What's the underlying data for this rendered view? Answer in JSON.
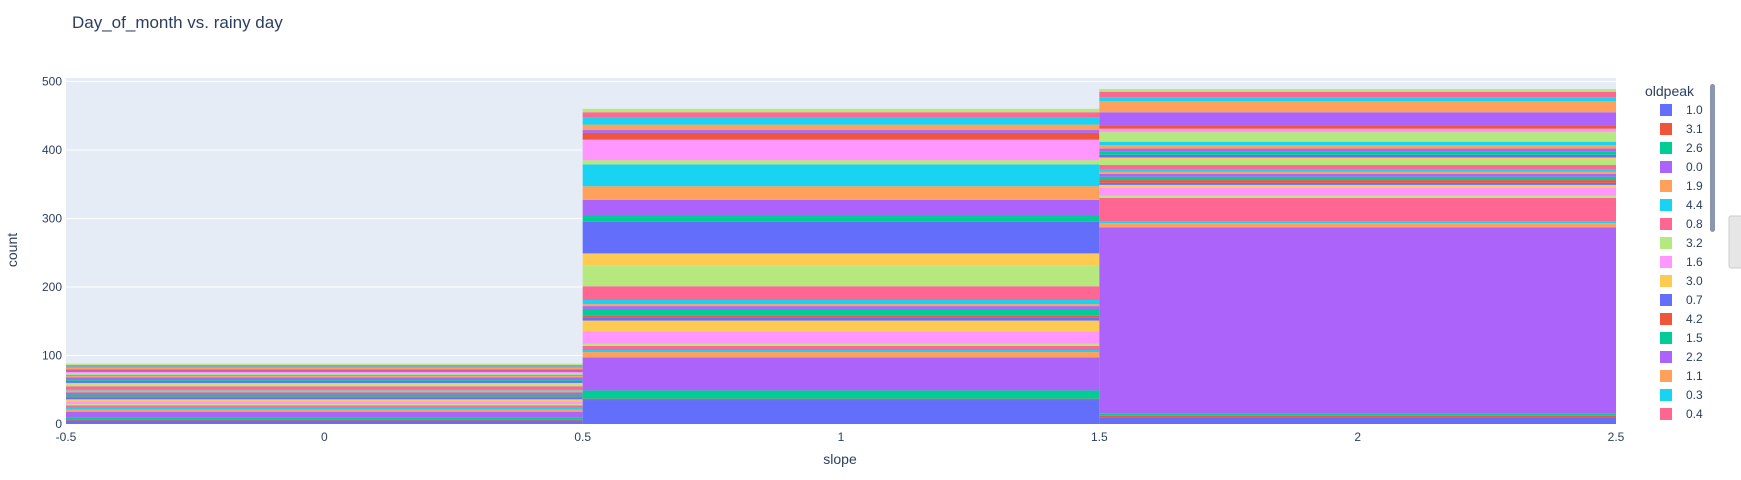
{
  "chart_data": {
    "type": "bar",
    "title": "Day_of_month vs. rainy day",
    "xlabel": "slope",
    "ylabel": "count",
    "xlim": [
      -0.5,
      2.5
    ],
    "ylim": [
      0,
      505
    ],
    "x_ticks": [
      "-0.5",
      "0",
      "0.5",
      "1",
      "1.5",
      "2",
      "2.5"
    ],
    "y_ticks": [
      "0",
      "100",
      "200",
      "300",
      "400",
      "500"
    ],
    "categories": [
      0,
      1,
      2
    ],
    "bar_width": 1,
    "barmode": "stack",
    "grid": true,
    "legend_title": "oldpeak",
    "legend_position": "right",
    "series": [
      {
        "name": "1.0",
        "color": "#636efa",
        "values": [
          5,
          35,
          10
        ]
      },
      {
        "name": "3.1",
        "color": "#EF553B",
        "values": [
          2,
          2,
          2
        ]
      },
      {
        "name": "2.6",
        "color": "#00cc96",
        "values": [
          3,
          12,
          3
        ]
      },
      {
        "name": "0.0",
        "color": "#ab63fa",
        "values": [
          8,
          48,
          272
        ]
      },
      {
        "name": "1.9",
        "color": "#FFA15A",
        "values": [
          3,
          8,
          6
        ]
      },
      {
        "name": "4.4",
        "color": "#19d3f3",
        "values": [
          3,
          3,
          3
        ]
      },
      {
        "name": "0.8",
        "color": "#FF6692",
        "values": [
          3,
          6,
          34
        ]
      },
      {
        "name": "3.2",
        "color": "#B6E880",
        "values": [
          2,
          3,
          3
        ]
      },
      {
        "name": "1.6",
        "color": "#FF97FF",
        "values": [
          4,
          18,
          12
        ]
      },
      {
        "name": "3.0",
        "color": "#FECB52",
        "values": [
          3,
          16,
          4
        ]
      },
      {
        "name": "0.7",
        "color": "#636efa",
        "values": [
          2,
          4,
          3
        ]
      },
      {
        "name": "4.2",
        "color": "#EF553B",
        "values": [
          2,
          3,
          4
        ]
      },
      {
        "name": "1.5",
        "color": "#00cc96",
        "values": [
          3,
          10,
          5
        ]
      },
      {
        "name": "2.2",
        "color": "#ab63fa",
        "values": [
          3,
          4,
          4
        ]
      },
      {
        "name": "1.1",
        "color": "#FFA15A",
        "values": [
          3,
          3,
          3
        ]
      },
      {
        "name": "0.3",
        "color": "#19d3f3",
        "values": [
          2,
          6,
          4
        ]
      },
      {
        "name": "0.4",
        "color": "#FF6692",
        "values": [
          4,
          20,
          6
        ]
      },
      {
        "name": "",
        "color": "#B6E880",
        "values": [
          3,
          30,
          8
        ]
      },
      {
        "name": "",
        "color": "#FECB52",
        "values": [
          2,
          18,
          3
        ]
      },
      {
        "name": "",
        "color": "#636efa",
        "values": [
          3,
          46,
          4
        ]
      },
      {
        "name": "",
        "color": "#00cc96",
        "values": [
          2,
          10,
          5
        ]
      },
      {
        "name": "",
        "color": "#ab63fa",
        "values": [
          3,
          22,
          4
        ]
      },
      {
        "name": "",
        "color": "#FFA15A",
        "values": [
          2,
          20,
          5
        ]
      },
      {
        "name": "",
        "color": "#19d3f3",
        "values": [
          2,
          32,
          5
        ]
      },
      {
        "name": "",
        "color": "#B6E880",
        "values": [
          2,
          6,
          14
        ]
      },
      {
        "name": "",
        "color": "#FF97FF",
        "values": [
          2,
          30,
          5
        ]
      },
      {
        "name": "",
        "color": "#EF553B",
        "values": [
          2,
          10,
          4
        ]
      },
      {
        "name": "",
        "color": "#ab63fa",
        "values": [
          2,
          4,
          20
        ]
      },
      {
        "name": "",
        "color": "#FFA15A",
        "values": [
          2,
          8,
          16
        ]
      },
      {
        "name": "",
        "color": "#19d3f3",
        "values": [
          2,
          10,
          6
        ]
      },
      {
        "name": "",
        "color": "#FF6692",
        "values": [
          2,
          8,
          8
        ]
      },
      {
        "name": "",
        "color": "#B6E880",
        "values": [
          2,
          5,
          4
        ]
      }
    ]
  }
}
